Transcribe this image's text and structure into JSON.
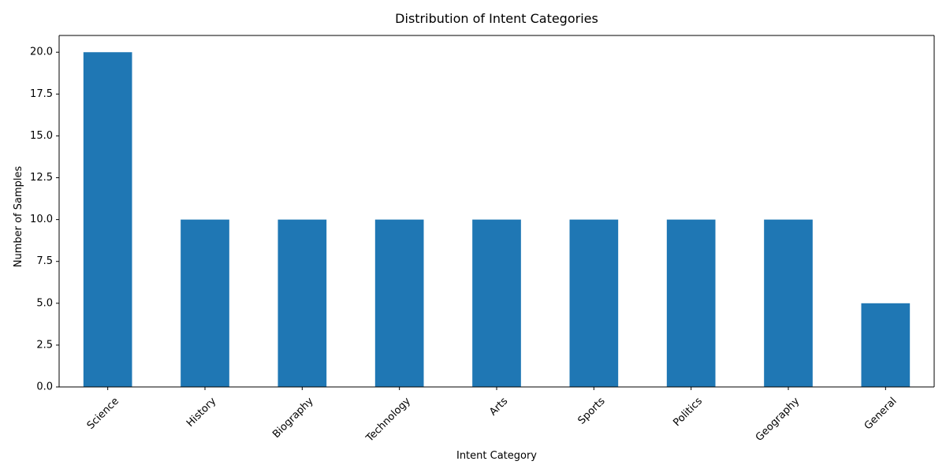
{
  "chart_data": {
    "type": "bar",
    "title": "Distribution of Intent Categories",
    "xlabel": "Intent Category",
    "ylabel": "Number of Samples",
    "categories": [
      "Science",
      "History",
      "Biography",
      "Technology",
      "Arts",
      "Sports",
      "Politics",
      "Geography",
      "General"
    ],
    "values": [
      20,
      10,
      10,
      10,
      10,
      10,
      10,
      10,
      5
    ],
    "ylim": [
      0,
      21
    ],
    "yticks": [
      "0.0",
      "2.5",
      "5.0",
      "7.5",
      "10.0",
      "12.5",
      "15.0",
      "17.5",
      "20.0"
    ],
    "bar_color": "#1f77b4",
    "grid": false,
    "legend": "none",
    "xtick_rotation_deg": 45
  }
}
